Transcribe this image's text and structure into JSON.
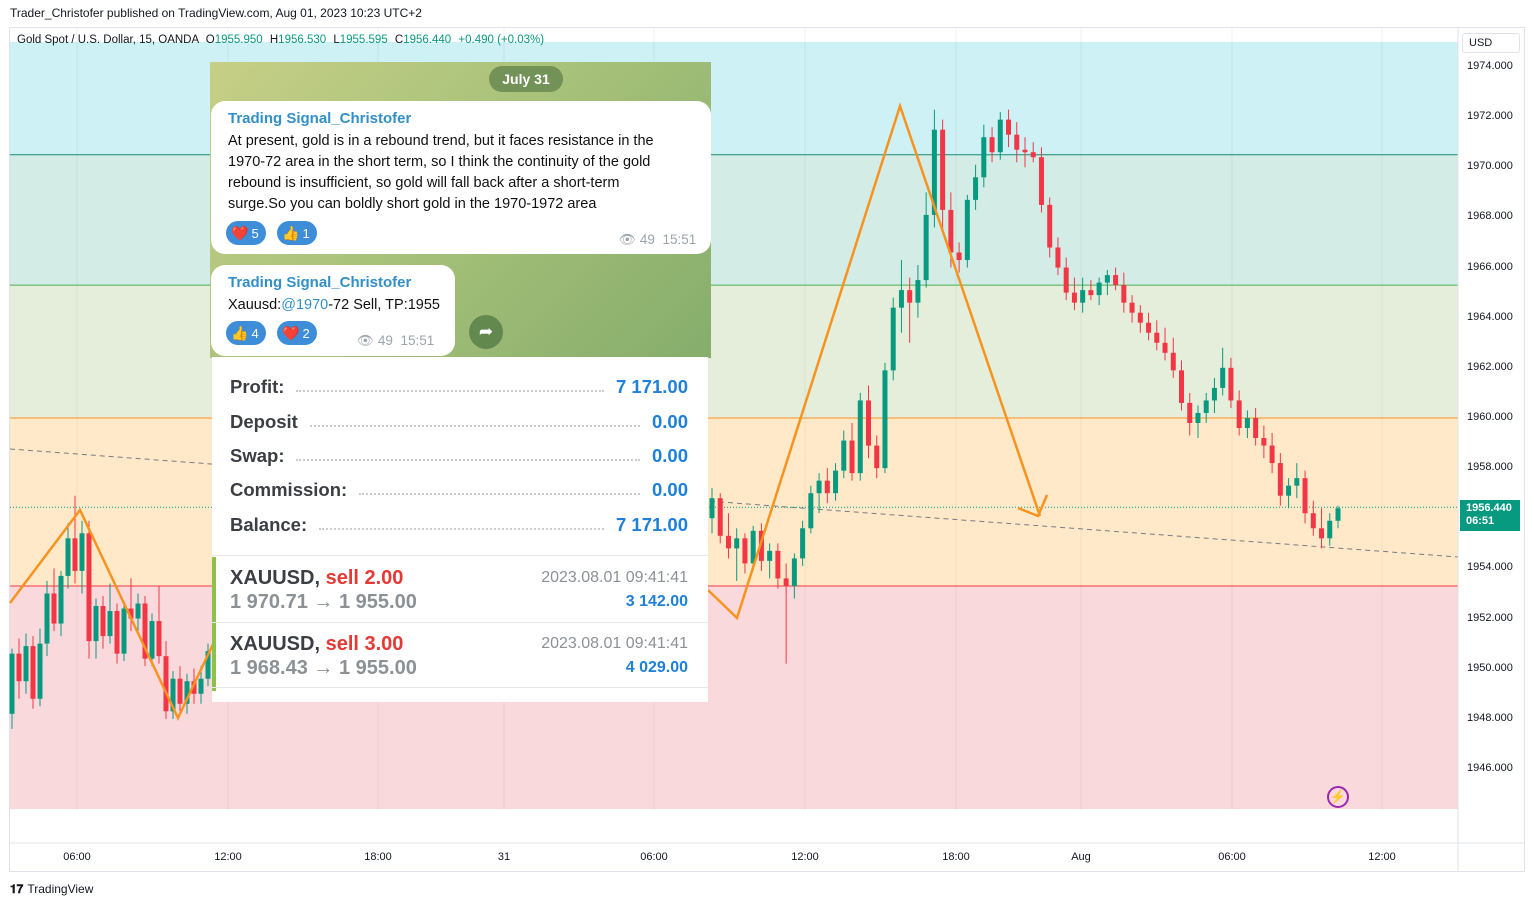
{
  "header": {
    "published": "Trader_Christofer published on TradingView.com, Aug 01, 2023 10:23 UTC+2"
  },
  "symbol": {
    "name": "Gold Spot / U.S. Dollar, 15, OANDA",
    "o_key": "O",
    "o": "1955.950",
    "h_key": "H",
    "h": "1956.530",
    "l_key": "L",
    "l": "1955.595",
    "c_key": "C",
    "c": "1956.440",
    "change": "+0.490 (+0.03%)"
  },
  "currency": "USD",
  "price_axis": [
    "1974.000",
    "1972.000",
    "1970.000",
    "1968.000",
    "1966.000",
    "1964.000",
    "1962.000",
    "1960.000",
    "1958.000",
    "1956.000",
    "1954.000",
    "1952.000",
    "1950.000",
    "1948.000",
    "1946.000"
  ],
  "time_axis": [
    "06:00",
    "12:00",
    "18:00",
    "31",
    "06:00",
    "12:00",
    "18:00",
    "Aug",
    "06:00",
    "12:00"
  ],
  "last_price": {
    "price": "1956.440",
    "countdown": "06:51"
  },
  "footer": {
    "logo": "TradingView"
  },
  "colors": {
    "up": "#089981",
    "down": "#f23645",
    "arrow": "#f7931e"
  },
  "chart_data": {
    "type": "candlestick",
    "zones": [
      {
        "from": 1970.5,
        "to": 1975,
        "color": "#cdf1f5"
      },
      {
        "from": 1965.3,
        "to": 1970.5,
        "color": "#d3ece5"
      },
      {
        "from": 1960,
        "to": 1965.3,
        "color": "#e4eedb"
      },
      {
        "from": 1953.3,
        "to": 1960,
        "color": "#ffe9c9"
      },
      {
        "from": 1944.4,
        "to": 1953.3,
        "color": "#fad9dc"
      }
    ],
    "levels": [
      1970.5,
      1965.3,
      1960.0,
      1953.3
    ],
    "ohlc": [
      [
        1948.2,
        1950.8,
        1947.6,
        1950.6
      ],
      [
        1950.6,
        1951.2,
        1948.8,
        1949.5
      ],
      [
        1949.5,
        1951.4,
        1949.0,
        1950.9
      ],
      [
        1950.9,
        1951.3,
        1948.4,
        1948.8
      ],
      [
        1948.8,
        1951.6,
        1948.5,
        1951.0
      ],
      [
        1951.0,
        1953.5,
        1950.5,
        1953.0
      ],
      [
        1953.0,
        1954.0,
        1951.5,
        1951.8
      ],
      [
        1951.8,
        1953.9,
        1951.3,
        1953.7
      ],
      [
        1953.7,
        1955.8,
        1953.2,
        1955.2
      ],
      [
        1955.2,
        1956.9,
        1953.4,
        1953.9
      ],
      [
        1953.9,
        1955.9,
        1953.0,
        1955.4
      ],
      [
        1955.4,
        1955.9,
        1950.4,
        1951.1
      ],
      [
        1951.1,
        1952.8,
        1950.4,
        1952.5
      ],
      [
        1952.5,
        1952.9,
        1950.8,
        1951.3
      ],
      [
        1951.3,
        1953.4,
        1951.0,
        1952.3
      ],
      [
        1952.3,
        1952.6,
        1950.2,
        1950.6
      ],
      [
        1950.6,
        1952.7,
        1950.3,
        1952.4
      ],
      [
        1952.4,
        1953.6,
        1951.5,
        1952.0
      ],
      [
        1952.0,
        1953.0,
        1951.4,
        1952.6
      ],
      [
        1952.6,
        1952.9,
        1950.1,
        1950.4
      ],
      [
        1950.4,
        1952.2,
        1950.1,
        1951.9
      ],
      [
        1951.9,
        1953.3,
        1950.2,
        1950.5
      ],
      [
        1950.5,
        1951.1,
        1948.0,
        1948.3
      ],
      [
        1948.3,
        1949.9,
        1948.0,
        1949.6
      ],
      [
        1949.6,
        1950.1,
        1948.3,
        1948.6
      ],
      [
        1948.6,
        1949.8,
        1948.2,
        1949.5
      ],
      [
        1949.5,
        1950.0,
        1948.6,
        1949.0
      ],
      [
        1949.0,
        1950.1,
        1948.6,
        1949.6
      ],
      [
        1949.6,
        1951.0,
        1949.3,
        1950.7
      ],
      [
        1956.0,
        1957.2,
        1955.4,
        1956.8
      ],
      [
        1956.8,
        1957.0,
        1955.0,
        1955.3
      ],
      [
        1955.3,
        1956.2,
        1954.4,
        1954.8
      ],
      [
        1954.8,
        1955.6,
        1953.5,
        1955.2
      ],
      [
        1955.2,
        1955.4,
        1953.8,
        1954.2
      ],
      [
        1954.2,
        1955.7,
        1953.9,
        1955.5
      ],
      [
        1955.5,
        1955.8,
        1953.9,
        1954.3
      ],
      [
        1954.3,
        1955.0,
        1953.6,
        1954.7
      ],
      [
        1954.7,
        1955.0,
        1953.2,
        1953.6
      ],
      [
        1953.6,
        1954.2,
        1950.2,
        1953.3
      ],
      [
        1953.3,
        1954.6,
        1952.8,
        1954.4
      ],
      [
        1954.4,
        1955.9,
        1954.1,
        1955.6
      ],
      [
        1955.6,
        1957.3,
        1955.4,
        1957.0
      ],
      [
        1957.0,
        1957.8,
        1956.2,
        1957.5
      ],
      [
        1957.5,
        1958.0,
        1956.6,
        1957.0
      ],
      [
        1957.0,
        1958.2,
        1956.7,
        1957.9
      ],
      [
        1957.9,
        1959.5,
        1957.6,
        1959.1
      ],
      [
        1959.1,
        1959.8,
        1957.5,
        1957.8
      ],
      [
        1957.8,
        1961.0,
        1957.5,
        1960.7
      ],
      [
        1960.7,
        1961.3,
        1958.4,
        1958.9
      ],
      [
        1958.9,
        1959.3,
        1957.6,
        1958.0
      ],
      [
        1958.0,
        1962.2,
        1957.8,
        1961.9
      ],
      [
        1961.9,
        1964.8,
        1961.5,
        1964.4
      ],
      [
        1964.4,
        1966.3,
        1963.4,
        1965.1
      ],
      [
        1965.1,
        1965.6,
        1963.0,
        1964.6
      ],
      [
        1964.6,
        1966.1,
        1964.0,
        1965.5
      ],
      [
        1965.5,
        1969.0,
        1965.2,
        1968.1
      ],
      [
        1968.1,
        1972.3,
        1967.6,
        1971.5
      ],
      [
        1971.5,
        1971.9,
        1967.5,
        1968.3
      ],
      [
        1968.3,
        1969.0,
        1966.0,
        1966.6
      ],
      [
        1966.6,
        1967.0,
        1965.8,
        1966.3
      ],
      [
        1966.3,
        1968.9,
        1966.0,
        1968.7
      ],
      [
        1968.7,
        1970.1,
        1968.3,
        1969.6
      ],
      [
        1969.6,
        1971.7,
        1969.2,
        1971.2
      ],
      [
        1971.2,
        1971.6,
        1970.2,
        1970.6
      ],
      [
        1970.6,
        1972.2,
        1970.3,
        1971.9
      ],
      [
        1971.9,
        1972.3,
        1970.8,
        1971.3
      ],
      [
        1971.3,
        1971.8,
        1970.2,
        1970.7
      ],
      [
        1970.7,
        1971.2,
        1970.0,
        1970.6
      ],
      [
        1970.6,
        1971.0,
        1970.2,
        1970.4
      ],
      [
        1970.4,
        1970.8,
        1968.2,
        1968.5
      ],
      [
        1968.5,
        1968.8,
        1966.4,
        1966.8
      ],
      [
        1966.8,
        1967.2,
        1965.7,
        1966.0
      ],
      [
        1966.0,
        1966.4,
        1964.7,
        1965.0
      ],
      [
        1965.0,
        1965.6,
        1964.3,
        1964.6
      ],
      [
        1964.6,
        1965.6,
        1964.2,
        1965.1
      ],
      [
        1965.1,
        1965.5,
        1964.7,
        1964.9
      ],
      [
        1964.9,
        1965.6,
        1964.5,
        1965.4
      ],
      [
        1965.4,
        1965.9,
        1964.9,
        1965.7
      ],
      [
        1965.7,
        1966.0,
        1965.1,
        1965.3
      ],
      [
        1965.3,
        1965.8,
        1964.2,
        1964.6
      ],
      [
        1964.6,
        1964.9,
        1963.8,
        1964.2
      ],
      [
        1964.2,
        1964.5,
        1963.4,
        1963.8
      ],
      [
        1963.8,
        1964.2,
        1963.1,
        1963.4
      ],
      [
        1963.4,
        1963.9,
        1962.7,
        1963.0
      ],
      [
        1963.0,
        1963.6,
        1962.3,
        1962.6
      ],
      [
        1962.6,
        1963.2,
        1961.6,
        1961.9
      ],
      [
        1961.9,
        1962.3,
        1960.3,
        1960.6
      ],
      [
        1960.6,
        1961.0,
        1959.3,
        1959.8
      ],
      [
        1959.8,
        1960.5,
        1959.2,
        1960.2
      ],
      [
        1960.2,
        1961.0,
        1959.8,
        1960.7
      ],
      [
        1960.7,
        1961.6,
        1960.2,
        1961.2
      ],
      [
        1961.2,
        1962.8,
        1960.9,
        1962.0
      ],
      [
        1962.0,
        1962.4,
        1960.4,
        1960.7
      ],
      [
        1960.7,
        1961.1,
        1959.3,
        1959.6
      ],
      [
        1959.6,
        1960.3,
        1959.2,
        1960.0
      ],
      [
        1960.0,
        1960.4,
        1958.9,
        1959.2
      ],
      [
        1959.2,
        1959.7,
        1958.4,
        1958.9
      ],
      [
        1958.9,
        1959.4,
        1957.8,
        1958.2
      ],
      [
        1958.2,
        1958.6,
        1956.5,
        1956.9
      ],
      [
        1956.9,
        1957.6,
        1956.4,
        1957.3
      ],
      [
        1957.3,
        1958.2,
        1956.8,
        1957.6
      ],
      [
        1957.6,
        1957.9,
        1955.8,
        1956.2
      ],
      [
        1956.2,
        1956.7,
        1955.3,
        1955.6
      ],
      [
        1955.6,
        1956.4,
        1954.8,
        1955.2
      ],
      [
        1955.2,
        1956.2,
        1954.9,
        1955.9
      ],
      [
        1955.9,
        1956.5,
        1955.6,
        1956.4
      ]
    ],
    "current_price": 1956.44
  },
  "telegram": {
    "date": "July 31",
    "messages": [
      {
        "sender": "Trading Signal_Christofer",
        "lines": [
          "At present, gold is in a rebound trend, but it faces resistance in the",
          "1970-72 area in the short term, so I think the continuity of the gold",
          "rebound is insufficient, so gold will fall back after a short-term",
          "surge.So you can boldly short gold in the 1970-1972 area"
        ],
        "reactions": [
          {
            "emoji": "❤️",
            "count": "5"
          },
          {
            "emoji": "👍",
            "count": "1"
          }
        ],
        "views": "49",
        "time": "15:51"
      },
      {
        "sender": "Trading Signal_Christofer",
        "text_prefix": "Xauusd:",
        "text_link": "@1970",
        "text_suffix": "-72 Sell, TP:1955",
        "reactions": [
          {
            "emoji": "👍",
            "count": "4"
          },
          {
            "emoji": "❤️",
            "count": "2"
          }
        ],
        "views": "49",
        "time": "15:51"
      }
    ]
  },
  "account": {
    "rows": [
      {
        "label": "Profit:",
        "value": "7 171.00"
      },
      {
        "label": "Deposit",
        "value": "0.00"
      },
      {
        "label": "Swap:",
        "value": "0.00"
      },
      {
        "label": "Commission:",
        "value": "0.00"
      },
      {
        "label": "Balance:",
        "value": "7 171.00"
      }
    ],
    "positions": [
      {
        "symbol": "XAUUSD,",
        "side": "sell 2.00",
        "prices": "1 970.71 → 1 955.00",
        "time": "2023.08.01 09:41:41",
        "profit": "3 142.00"
      },
      {
        "symbol": "XAUUSD,",
        "side": "sell 3.00",
        "prices": "1 968.43 → 1 955.00",
        "time": "2023.08.01 09:41:41",
        "profit": "4 029.00"
      }
    ]
  }
}
